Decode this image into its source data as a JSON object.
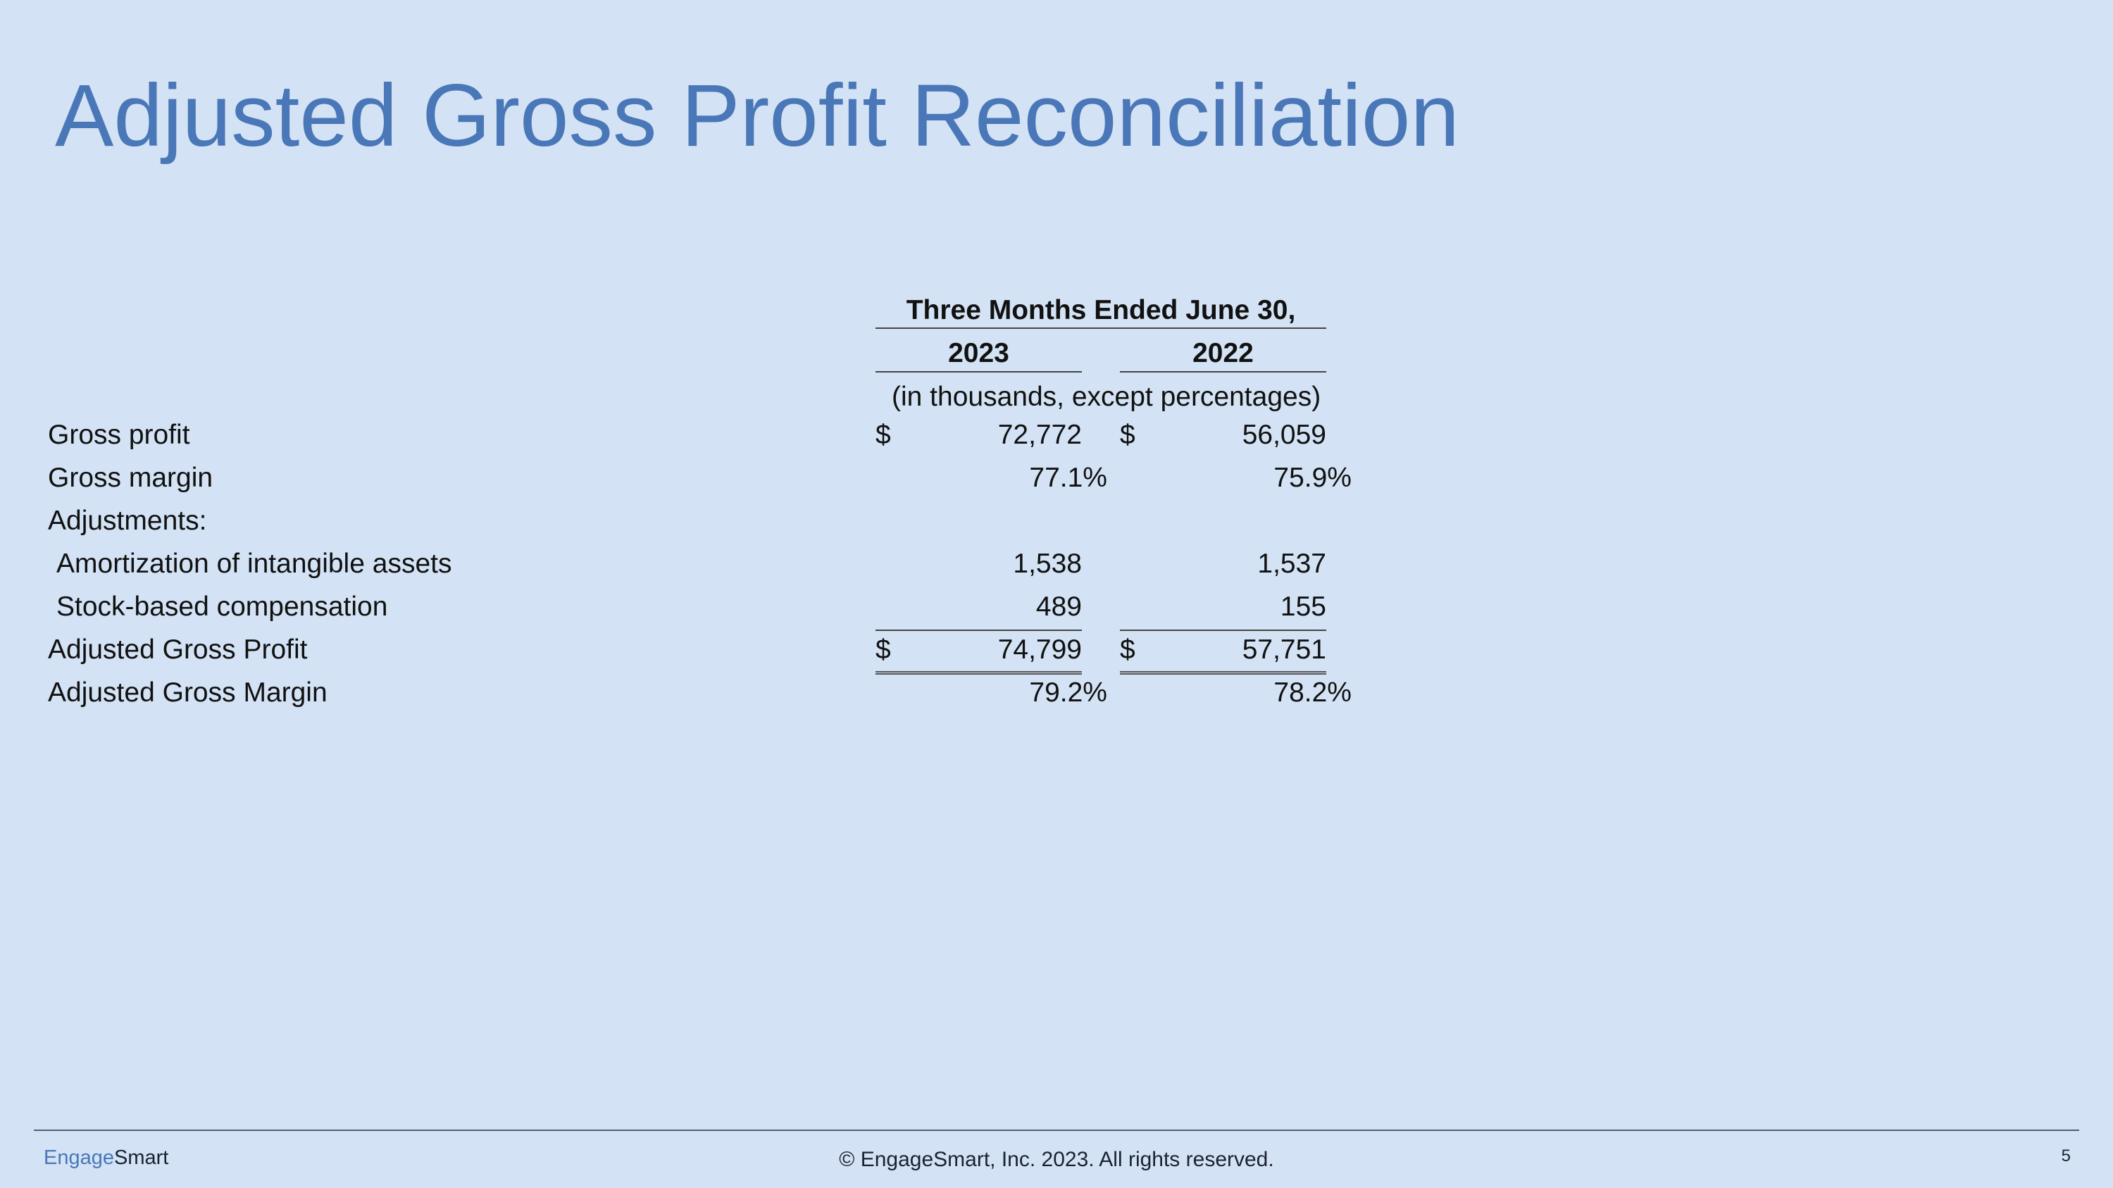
{
  "slide": {
    "title": "Adjusted Gross Profit Reconciliation",
    "page_number": "5"
  },
  "table": {
    "period_header": "Three Months Ended June 30,",
    "columns": [
      "2023",
      "2022"
    ],
    "units_note": "(in thousands, except percentages)",
    "currency_symbol": "$",
    "rows": [
      {
        "label": "Gross profit",
        "v2023": "72,772",
        "v2022": "56,059",
        "currency": true
      },
      {
        "label": "Gross margin",
        "v2023": "77.1%",
        "v2022": "75.9%"
      },
      {
        "label": "Adjustments:"
      },
      {
        "label": "Amortization of intangible assets",
        "v2023": "1,538",
        "v2022": "1,537"
      },
      {
        "label": "Stock-based compensation",
        "v2023": "489",
        "v2022": "155"
      },
      {
        "label": "Adjusted Gross Profit",
        "v2023": "74,799",
        "v2022": "57,751",
        "currency": true
      },
      {
        "label": "Adjusted Gross Margin",
        "v2023": "79.2%",
        "v2022": "78.2%"
      }
    ]
  },
  "footer": {
    "logo_part1": "Engage",
    "logo_part2": "Smart",
    "copyright": "© EngageSmart, Inc. 2023. All rights reserved."
  },
  "colors": {
    "background": "#d3e2f4",
    "title": "#4a77b8",
    "text": "#111111"
  }
}
